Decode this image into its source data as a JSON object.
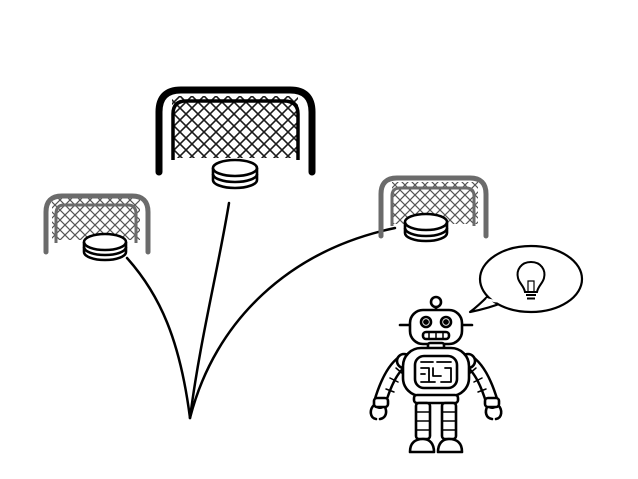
{
  "scene": {
    "description_items": {
      "goals": [
        {
          "id": "left-goal",
          "emphasis": "faded"
        },
        {
          "id": "center-goal",
          "emphasis": "bold"
        },
        {
          "id": "right-goal",
          "emphasis": "faded"
        }
      ],
      "pucks": 3,
      "trajectories": 3,
      "robot": {
        "thought_icon": "lightbulb-icon"
      }
    },
    "colors": {
      "stroke_dark": "#000000",
      "stroke_gray": "#6b6b6b",
      "fill": "#ffffff",
      "net": "#222222"
    }
  }
}
